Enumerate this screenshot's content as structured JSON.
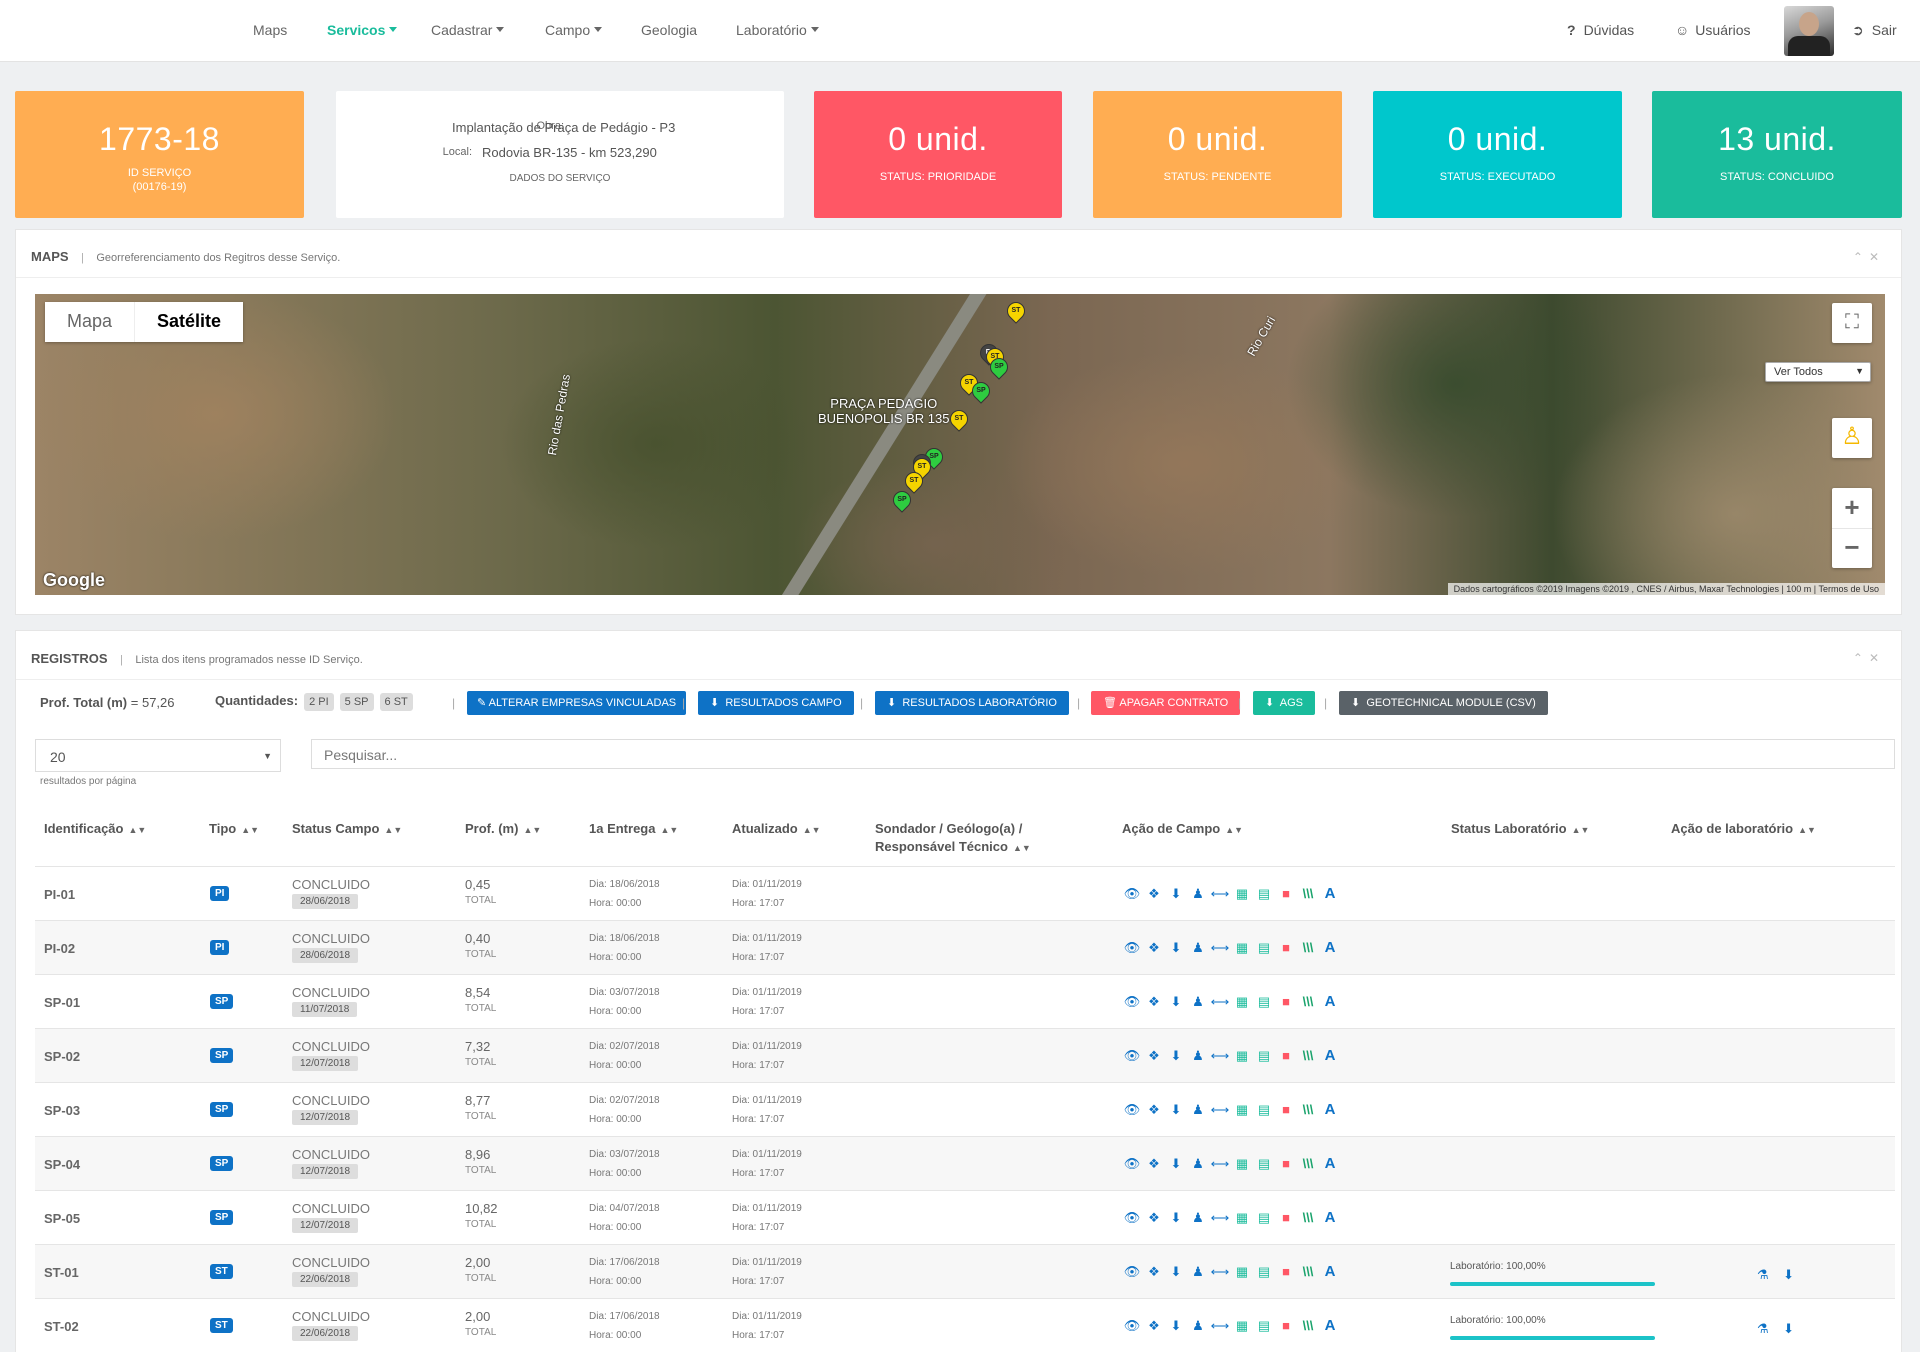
{
  "nav": {
    "items": [
      {
        "label": "Maps",
        "dropdown": false,
        "active": false
      },
      {
        "label": "Servicos",
        "dropdown": true,
        "active": true
      },
      {
        "label": "Cadastrar",
        "dropdown": true,
        "active": false
      },
      {
        "label": "Campo",
        "dropdown": true,
        "active": false
      },
      {
        "label": "Geologia",
        "dropdown": false,
        "active": false
      },
      {
        "label": "Laboratório",
        "dropdown": true,
        "active": false
      }
    ],
    "help_label": "Dúvidas",
    "users_label": "Usuários",
    "logout_label": "Sair"
  },
  "stats": {
    "id": {
      "value": "1773-18",
      "label": "ID SERVIÇO",
      "sub": "(00176-19)",
      "color": "#ffad52"
    },
    "prioridade": {
      "value": "0 unid.",
      "label": "STATUS: PRIORIDADE",
      "color": "#ff5765"
    },
    "pendente": {
      "value": "0 unid.",
      "label": "STATUS: PENDENTE",
      "color": "#ffad52"
    },
    "executado": {
      "value": "0 unid.",
      "label": "STATUS: EXECUTADO",
      "color": "#00c7cc"
    },
    "concluido": {
      "value": "13 unid.",
      "label": "STATUS: CONCLUIDO",
      "color": "#1abc9c"
    }
  },
  "service": {
    "obra_label": "Obra:",
    "obra": "Implantação de Praça de Pedágio - P3",
    "local_label": "Local:",
    "local": "Rodovia BR-135 - km 523,290",
    "footer": "DADOS DO SERVIÇO"
  },
  "maps": {
    "title": "MAPS",
    "subtitle": "Georreferenciamento dos Regitros desse Serviço.",
    "tab_map": "Mapa",
    "tab_satellite": "Satélite",
    "filter": "Ver Todos",
    "place_label": "PRAÇA PEDAGIO\nBUENOPOLIS BR 135",
    "river1": "Rio das Pedras",
    "river2": "Rio Curi",
    "google": "Google",
    "attribution": "Dados cartográficos ©2019 Imagens ©2019 , CNES / Airbus, Maxar Technologies  |  100 m  |  Termos de Uso",
    "pins": [
      "ST",
      "ST",
      "SP",
      "ST",
      "SP",
      "ST",
      "SP",
      "ST",
      "ST",
      "SP",
      "PI",
      "PI"
    ]
  },
  "registros": {
    "title": "REGISTROS",
    "subtitle": "Lista dos itens programados nesse ID Serviço.",
    "prof_total_label": "Prof. Total (m)",
    "prof_total_value": "= 57,26",
    "quantidades_label": "Quantidades:",
    "pills": [
      "2 PI",
      "5 SP",
      "6 ST"
    ],
    "buttons": {
      "alterar": "ALTERAR EMPRESAS VINCULADAS",
      "campo": "RESULTADOS CAMPO",
      "laboratorio": "RESULTADOS LABORATÓRIO",
      "apagar": "APAGAR CONTRATO",
      "ags": "AGS",
      "geotech": "GEOTECHNICAL MODULE (CSV)"
    },
    "page_size": "20",
    "page_size_caption": "resultados por página",
    "search_placeholder": "Pesquisar...",
    "columns": [
      "Identificação",
      "Tipo",
      "Status Campo",
      "Prof. (m)",
      "1a Entrega",
      "Atualizado",
      "Sondador / Geólogo(a) /",
      "Responsável Técnico",
      "Ação de Campo",
      "Status Laboratório",
      "Ação de laboratório"
    ],
    "total_label": "TOTAL",
    "rows": [
      {
        "id": "PI-01",
        "tipo": "PI",
        "status": "CONCLUIDO",
        "status_date": "28/06/2018",
        "prof": "0,45",
        "entrega_dia": "Dia: 18/06/2018",
        "entrega_hora": "Hora: 00:00",
        "atual_dia": "Dia: 01/11/2019",
        "atual_hora": "Hora: 17:07",
        "lab": ""
      },
      {
        "id": "PI-02",
        "tipo": "PI",
        "status": "CONCLUIDO",
        "status_date": "28/06/2018",
        "prof": "0,40",
        "entrega_dia": "Dia: 18/06/2018",
        "entrega_hora": "Hora: 00:00",
        "atual_dia": "Dia: 01/11/2019",
        "atual_hora": "Hora: 17:07",
        "lab": ""
      },
      {
        "id": "SP-01",
        "tipo": "SP",
        "status": "CONCLUIDO",
        "status_date": "11/07/2018",
        "prof": "8,54",
        "entrega_dia": "Dia: 03/07/2018",
        "entrega_hora": "Hora: 00:00",
        "atual_dia": "Dia: 01/11/2019",
        "atual_hora": "Hora: 17:07",
        "lab": ""
      },
      {
        "id": "SP-02",
        "tipo": "SP",
        "status": "CONCLUIDO",
        "status_date": "12/07/2018",
        "prof": "7,32",
        "entrega_dia": "Dia: 02/07/2018",
        "entrega_hora": "Hora: 00:00",
        "atual_dia": "Dia: 01/11/2019",
        "atual_hora": "Hora: 17:07",
        "lab": ""
      },
      {
        "id": "SP-03",
        "tipo": "SP",
        "status": "CONCLUIDO",
        "status_date": "12/07/2018",
        "prof": "8,77",
        "entrega_dia": "Dia: 02/07/2018",
        "entrega_hora": "Hora: 00:00",
        "atual_dia": "Dia: 01/11/2019",
        "atual_hora": "Hora: 17:07",
        "lab": ""
      },
      {
        "id": "SP-04",
        "tipo": "SP",
        "status": "CONCLUIDO",
        "status_date": "12/07/2018",
        "prof": "8,96",
        "entrega_dia": "Dia: 03/07/2018",
        "entrega_hora": "Hora: 00:00",
        "atual_dia": "Dia: 01/11/2019",
        "atual_hora": "Hora: 17:07",
        "lab": ""
      },
      {
        "id": "SP-05",
        "tipo": "SP",
        "status": "CONCLUIDO",
        "status_date": "12/07/2018",
        "prof": "10,82",
        "entrega_dia": "Dia: 04/07/2018",
        "entrega_hora": "Hora: 00:00",
        "atual_dia": "Dia: 01/11/2019",
        "atual_hora": "Hora: 17:07",
        "lab": ""
      },
      {
        "id": "ST-01",
        "tipo": "ST",
        "status": "CONCLUIDO",
        "status_date": "22/06/2018",
        "prof": "2,00",
        "entrega_dia": "Dia: 17/06/2018",
        "entrega_hora": "Hora: 00:00",
        "atual_dia": "Dia: 01/11/2019",
        "atual_hora": "Hora: 17:07",
        "lab": "Laboratório: 100,00%",
        "lab_progress": 1.0
      },
      {
        "id": "ST-02",
        "tipo": "ST",
        "status": "CONCLUIDO",
        "status_date": "22/06/2018",
        "prof": "2,00",
        "entrega_dia": "Dia: 17/06/2018",
        "entrega_hora": "Hora: 00:00",
        "atual_dia": "Dia: 01/11/2019",
        "atual_hora": "Hora: 17:07",
        "lab": "Laboratório: 100,00%",
        "lab_progress": 1.0
      }
    ]
  }
}
